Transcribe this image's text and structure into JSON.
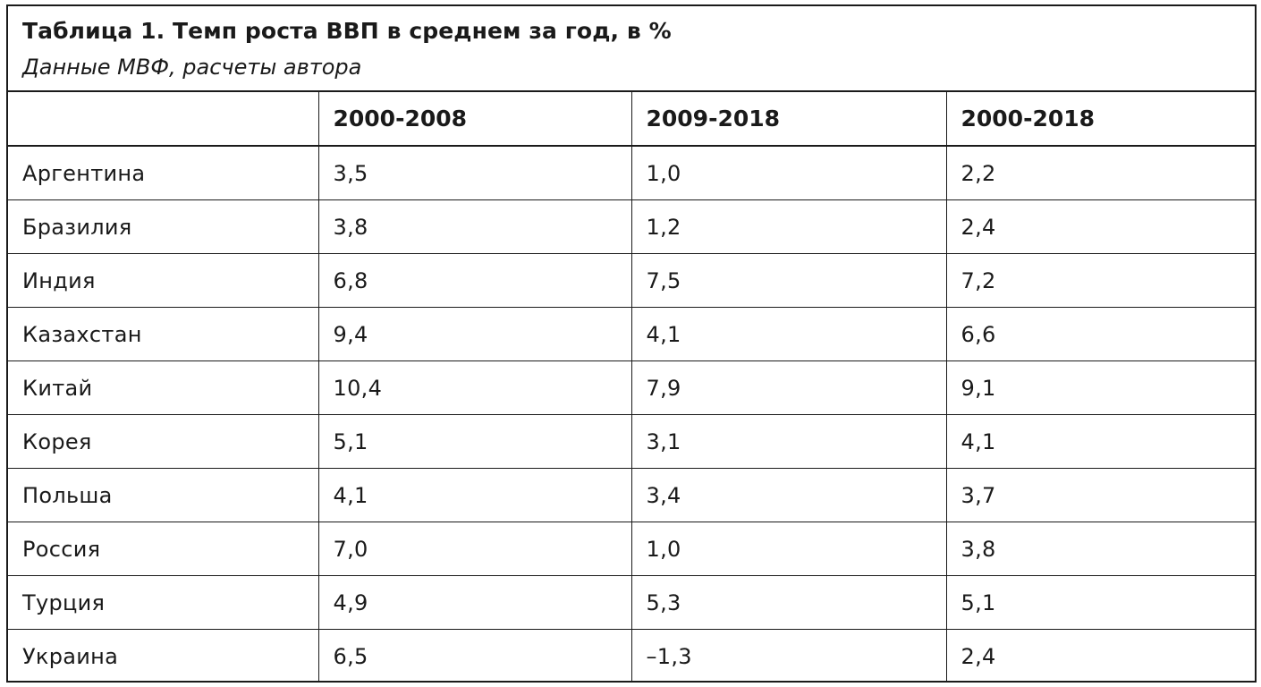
{
  "table": {
    "title": "Таблица 1. Темп роста ВВП в среднем за год, в %",
    "subtitle": "Данные МВФ, расчеты автора",
    "columns": [
      "",
      "2000-2008",
      "2009-2018",
      "2000-2018"
    ],
    "rows": [
      {
        "country": "Аргентина",
        "values": [
          "3,5",
          "1,0",
          "2,2"
        ]
      },
      {
        "country": "Бразилия",
        "values": [
          "3,8",
          "1,2",
          "2,4"
        ]
      },
      {
        "country": "Индия",
        "values": [
          "6,8",
          "7,5",
          "7,2"
        ]
      },
      {
        "country": "Казахстан",
        "values": [
          "9,4",
          "4,1",
          "6,6"
        ]
      },
      {
        "country": "Китай",
        "values": [
          "10,4",
          "7,9",
          "9,1"
        ]
      },
      {
        "country": "Корея",
        "values": [
          "5,1",
          "3,1",
          "4,1"
        ]
      },
      {
        "country": "Польша",
        "values": [
          "4,1",
          "3,4",
          "3,7"
        ]
      },
      {
        "country": "Россия",
        "values": [
          "7,0",
          "1,0",
          "3,8"
        ]
      },
      {
        "country": "Турция",
        "values": [
          "4,9",
          "5,3",
          "5,1"
        ]
      },
      {
        "country": "Украина",
        "values": [
          "6,5",
          "–1,3",
          "2,4"
        ]
      }
    ]
  }
}
